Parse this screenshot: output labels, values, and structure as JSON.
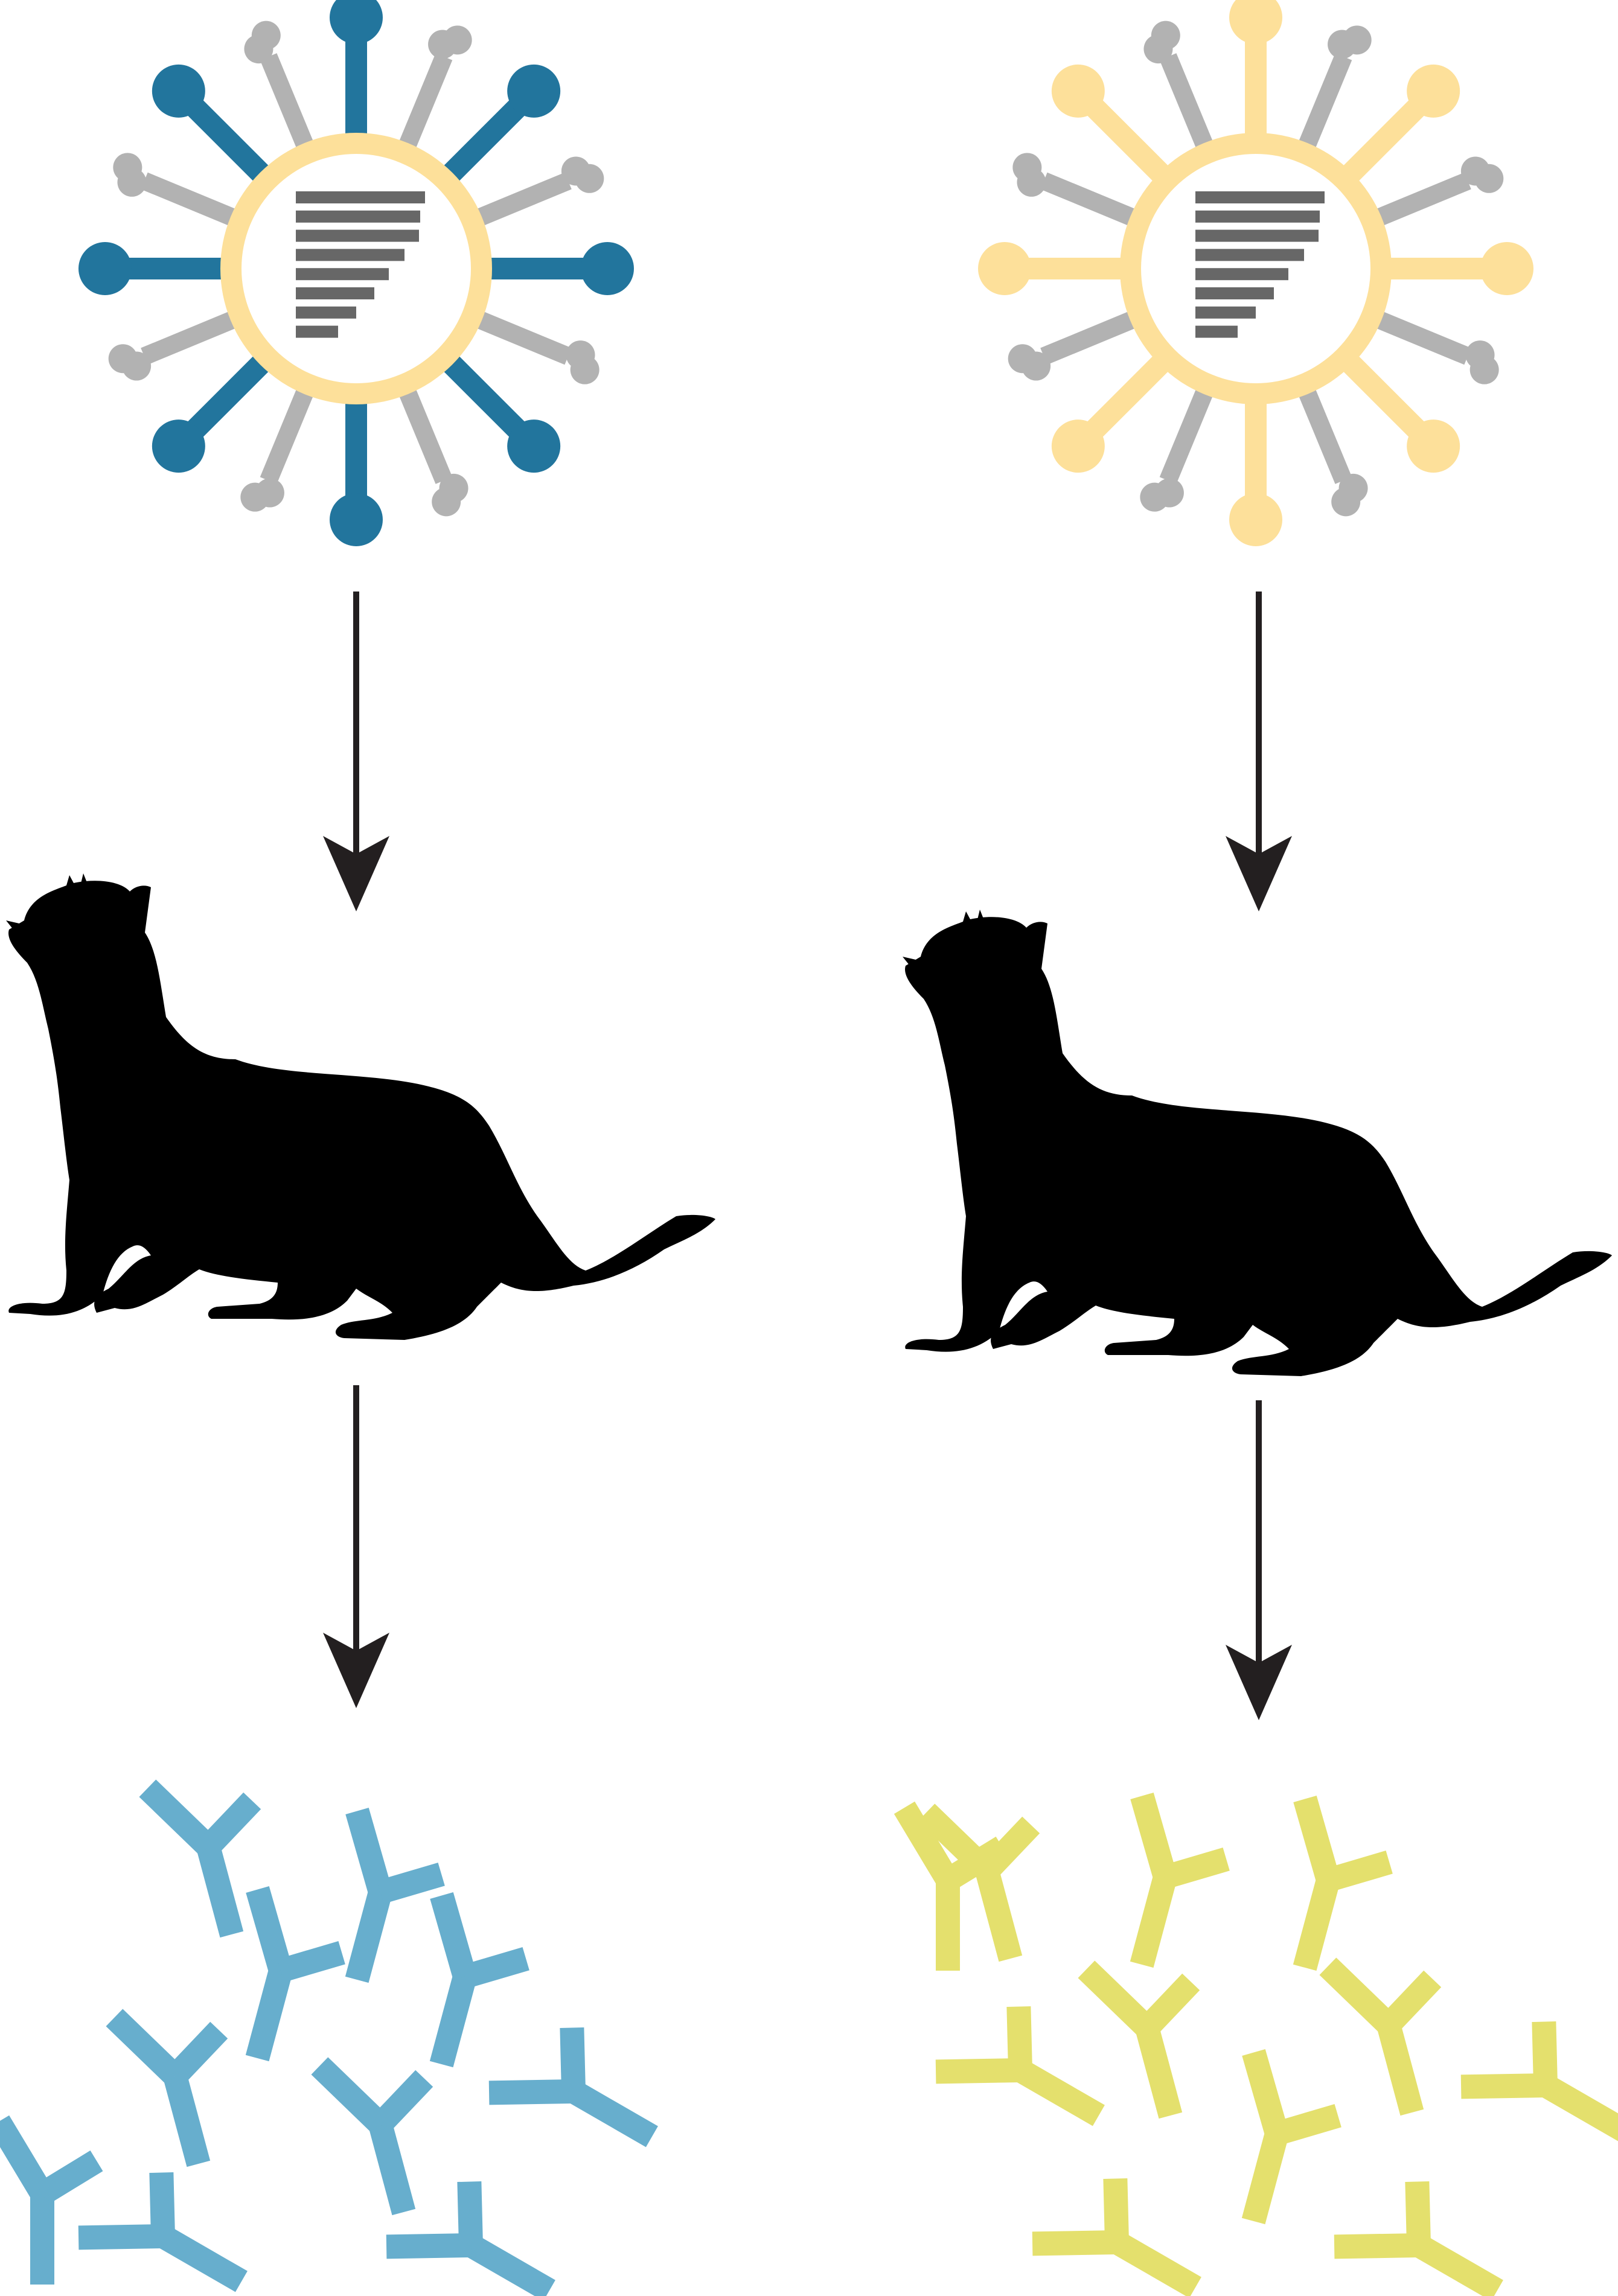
{
  "figure": {
    "columns": [
      {
        "id": "left",
        "virus": {
          "envelope_color": "#FDE09A",
          "major_spike_color": "#22759D",
          "minor_spike_color": "#B2B2B2",
          "genome_bar_color": "#676767",
          "genome_segments": 8
        },
        "animal": "ferret",
        "antibody_color": "#67AECD",
        "antibody_count": 10
      },
      {
        "id": "right",
        "virus": {
          "envelope_color": "#FDE09A",
          "major_spike_color": "#FDE09A",
          "minor_spike_color": "#B2B2B2",
          "genome_bar_color": "#676767",
          "genome_segments": 8
        },
        "animal": "ferret",
        "antibody_color": "#E4E06D",
        "antibody_count": 11
      }
    ],
    "arrow_color": "#231F20",
    "silhouette_color": "#000000",
    "icons": [
      "virus-icon",
      "ferret-icon",
      "antibody-icon",
      "arrow-down-icon"
    ]
  }
}
